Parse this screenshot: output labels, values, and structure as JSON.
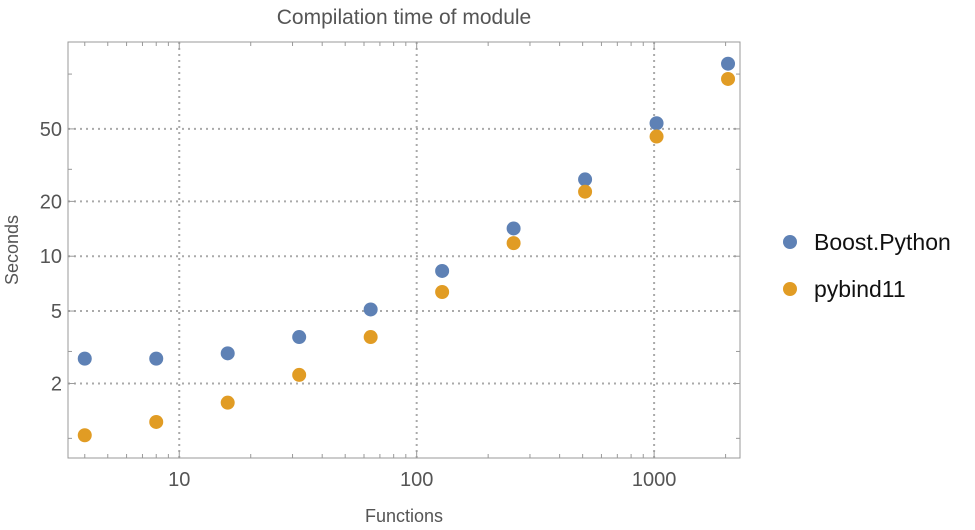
{
  "chart_data": {
    "type": "scatter",
    "title": "Compilation time of module",
    "xlabel": "Functions",
    "ylabel": "Seconds",
    "x_scale": "log",
    "y_scale": "log",
    "xlim": [
      3.4,
      2300
    ],
    "ylim": [
      0.78,
      150
    ],
    "grid": true,
    "legend_position": "right",
    "x_ticks": [
      10,
      100,
      1000
    ],
    "x_tick_labels": [
      "10",
      "100",
      "1000"
    ],
    "y_ticks": [
      2,
      5,
      10,
      20,
      50
    ],
    "y_tick_labels": [
      "2",
      "5",
      "10",
      "20",
      "50"
    ],
    "x": [
      4,
      8,
      16,
      32,
      64,
      128,
      256,
      512,
      1024,
      2048
    ],
    "series": [
      {
        "name": "Boost.Python",
        "color": "#5E81B5",
        "values": [
          2.74,
          2.74,
          2.93,
          3.6,
          5.1,
          8.3,
          14.2,
          26.4,
          53.7,
          114
        ]
      },
      {
        "name": "pybind11",
        "color": "#E19C24",
        "values": [
          1.04,
          1.23,
          1.57,
          2.23,
          3.6,
          6.36,
          11.8,
          22.6,
          45.4,
          94
        ]
      }
    ]
  }
}
